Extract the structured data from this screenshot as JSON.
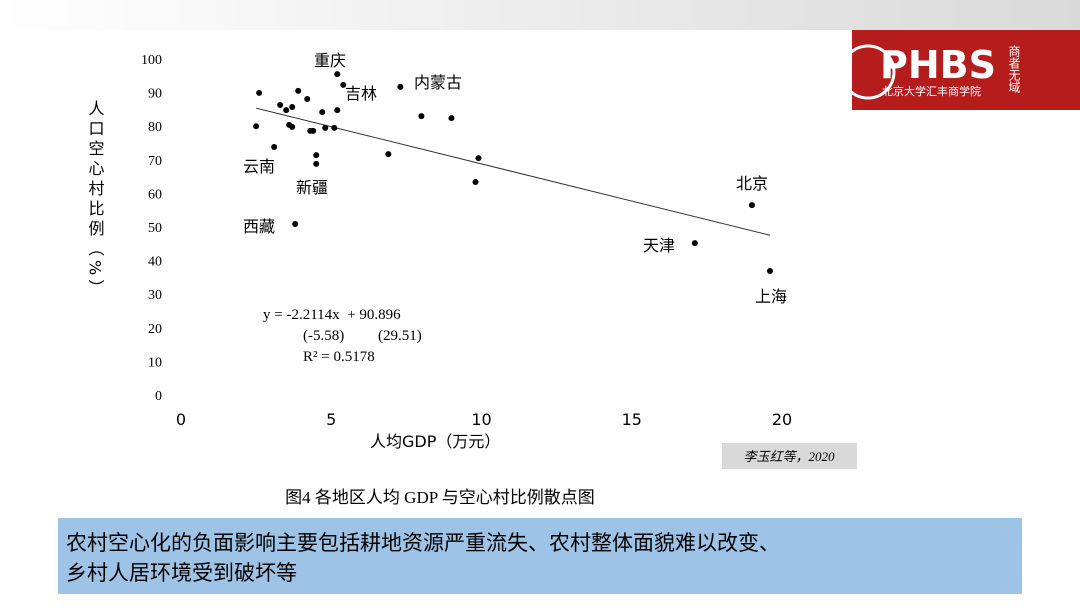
{
  "header": {
    "brand": "PHBS",
    "school": "北京大学汇丰商学院",
    "motto": "商者无域"
  },
  "chart_data": {
    "type": "scatter",
    "x": [
      2.6,
      2.5,
      3.1,
      3.3,
      3.5,
      3.7,
      3.9,
      3.6,
      3.7,
      4.2,
      4.3,
      4.4,
      4.5,
      4.5,
      4.7,
      4.8,
      5.1,
      5.2,
      5.2,
      5.4,
      3.8,
      6.9,
      7.3,
      8.0,
      9.0,
      9.9,
      9.8,
      17.1,
      19.0,
      19.6
    ],
    "values": [
      89.9,
      80,
      73.8,
      86.3,
      84.8,
      85.7,
      90.5,
      80.4,
      79.8,
      88.1,
      78.6,
      78.6,
      71.4,
      68.8,
      84.2,
      79.5,
      79.5,
      84.8,
      95.5,
      92.3,
      50.9,
      71.7,
      91.7,
      83,
      82.4,
      70.5,
      63.4,
      45.2,
      56.5,
      36.9
    ],
    "color": "#000000",
    "xlim": [
      0,
      20
    ],
    "xticks": [
      0,
      5,
      10,
      15,
      20
    ],
    "ylim": [
      0,
      100
    ],
    "yticks": [
      0,
      10,
      20,
      30,
      40,
      50,
      60,
      70,
      80,
      90,
      100
    ],
    "grid": false,
    "xlabel": "人均GDP（万元）",
    "ylabel": "人口空心村比例（%）",
    "annotations": [
      "重庆",
      "吉林",
      "内蒙古",
      "云南",
      "新疆",
      "西藏",
      "北京",
      "天津",
      "上海"
    ],
    "trendline": {
      "slope": -2.2114,
      "intercept": 90.896
    },
    "equation": [
      "y = -2.2114x  + 90.896",
      "(-5.58)         (29.51)",
      "R² = 0.5178"
    ]
  },
  "source": "李玉红等，2020",
  "caption": "图4   各地区人均 GDP 与空心村比例散点图",
  "summary": [
    "农村空心化的负面影响主要包括耕地资源严重流失、农村整体面貌难以改变、",
    "乡村人居环境受到破坏等"
  ]
}
